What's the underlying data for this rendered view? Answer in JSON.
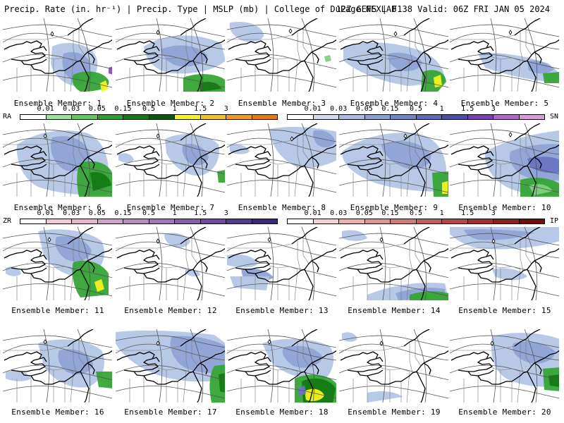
{
  "header": {
    "left": "Precip. Rate (in. hr⁻¹) | Precip. Type | MSLP (mb) | College of DuPage NEXLAB",
    "right": "12Z GEFS | F138 Valid: 06Z FRI JAN 05 2024"
  },
  "members": [
    {
      "label": "Ensemble Member: 1"
    },
    {
      "label": "Ensemble Member: 2"
    },
    {
      "label": "Ensemble Member: 3"
    },
    {
      "label": "Ensemble Member: 4"
    },
    {
      "label": "Ensemble Member: 5"
    },
    {
      "label": "Ensemble Member: 6"
    },
    {
      "label": "Ensemble Member: 7"
    },
    {
      "label": "Ensemble Member: 8"
    },
    {
      "label": "Ensemble Member: 9"
    },
    {
      "label": "Ensemble Member: 10"
    },
    {
      "label": "Ensemble Member: 11"
    },
    {
      "label": "Ensemble Member: 12"
    },
    {
      "label": "Ensemble Member: 13"
    },
    {
      "label": "Ensemble Member: 14"
    },
    {
      "label": "Ensemble Member: 15"
    },
    {
      "label": "Ensemble Member: 16"
    },
    {
      "label": "Ensemble Member: 17"
    },
    {
      "label": "Ensemble Member: 18"
    },
    {
      "label": "Ensemble Member: 19"
    },
    {
      "label": "Ensemble Member: 20"
    }
  ],
  "legends": {
    "ra": {
      "code": "RA",
      "ticks": [
        "0.01",
        "0.03",
        "0.05",
        "0.15",
        "0.5",
        "1",
        "1.5",
        "3"
      ],
      "colors": [
        "#ffffff",
        "#9be39b",
        "#5ec95e",
        "#2aa12a",
        "#137a13",
        "#0b5a0b",
        "#f5f21e",
        "#f2c21e",
        "#f09a1e",
        "#e8780f"
      ]
    },
    "sn": {
      "code": "SN",
      "ticks": [
        "0.01",
        "0.03",
        "0.05",
        "0.15",
        "0.5",
        "1",
        "1.5",
        "3"
      ],
      "colors": [
        "#ffffff",
        "#cfd8ec",
        "#a9b9df",
        "#8aa0d4",
        "#6f85c6",
        "#5a69b8",
        "#4a4fa8",
        "#7a3fb0",
        "#b266cc",
        "#d99ad9"
      ]
    },
    "zr": {
      "code": "ZR",
      "ticks": [
        "0.01",
        "0.03",
        "0.05",
        "0.15",
        "0.5",
        "1",
        "1.5",
        "3"
      ],
      "colors": [
        "#ffffff",
        "#f4c9d6",
        "#e6b4cc",
        "#d3a0c6",
        "#b88cc0",
        "#9d77b6",
        "#8462aa",
        "#6d4e9e",
        "#553a8f",
        "#3e2a7a"
      ]
    },
    "ip": {
      "code": "IP",
      "ticks": [
        "0.01",
        "0.03",
        "0.05",
        "0.15",
        "0.5",
        "1",
        "1.5",
        "3"
      ],
      "colors": [
        "#ffffff",
        "#f6d0d0",
        "#eab3b3",
        "#dc9696",
        "#cf7a7a",
        "#c05f5f",
        "#b04747",
        "#9e3232",
        "#8a1f1f",
        "#6e0e0e"
      ]
    }
  },
  "precip_colors": {
    "snow_light": "#b4c6e6",
    "snow_mid": "#8ea3d6",
    "snow_heavy": "#6a74c4",
    "rain_light": "#7fd07f",
    "rain_mid": "#35a535",
    "rain_heavy": "#137a13",
    "rain_extreme": "#f5f21e",
    "mix_purple": "#8a4fc0"
  },
  "map_symbols": {
    "high_marker": "diamond-icon"
  }
}
